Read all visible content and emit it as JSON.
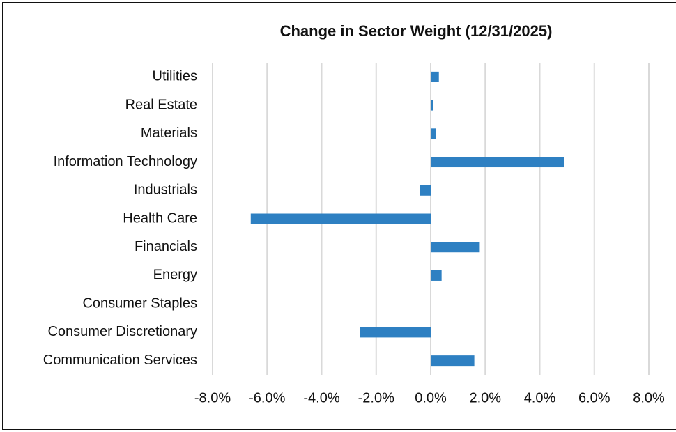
{
  "chart_data": {
    "type": "bar",
    "orientation": "horizontal",
    "title": "Change in Sector Weight (12/31/2025)",
    "categories": [
      "Utilities",
      "Real Estate",
      "Materials",
      "Information Technology",
      "Industrials",
      "Health Care",
      "Financials",
      "Energy",
      "Consumer Staples",
      "Consumer Discretionary",
      "Communication Services"
    ],
    "values": [
      0.3,
      0.1,
      0.2,
      4.9,
      -0.4,
      -6.6,
      1.8,
      0.4,
      0.0,
      -2.6,
      1.6
    ],
    "color": "#2e80c2",
    "xlim": [
      -8,
      8
    ],
    "xticks": [
      {
        "value": -8,
        "label": "-8.0%"
      },
      {
        "value": -6,
        "label": "-6.0%"
      },
      {
        "value": -4,
        "label": "-4.0%"
      },
      {
        "value": -2,
        "label": "-2.0%"
      },
      {
        "value": 0,
        "label": "0.0%"
      },
      {
        "value": 2,
        "label": "2.0%"
      },
      {
        "value": 4,
        "label": "4.0%"
      },
      {
        "value": 6,
        "label": "6.0%"
      },
      {
        "value": 8,
        "label": "8.0%"
      }
    ],
    "grid": true
  }
}
